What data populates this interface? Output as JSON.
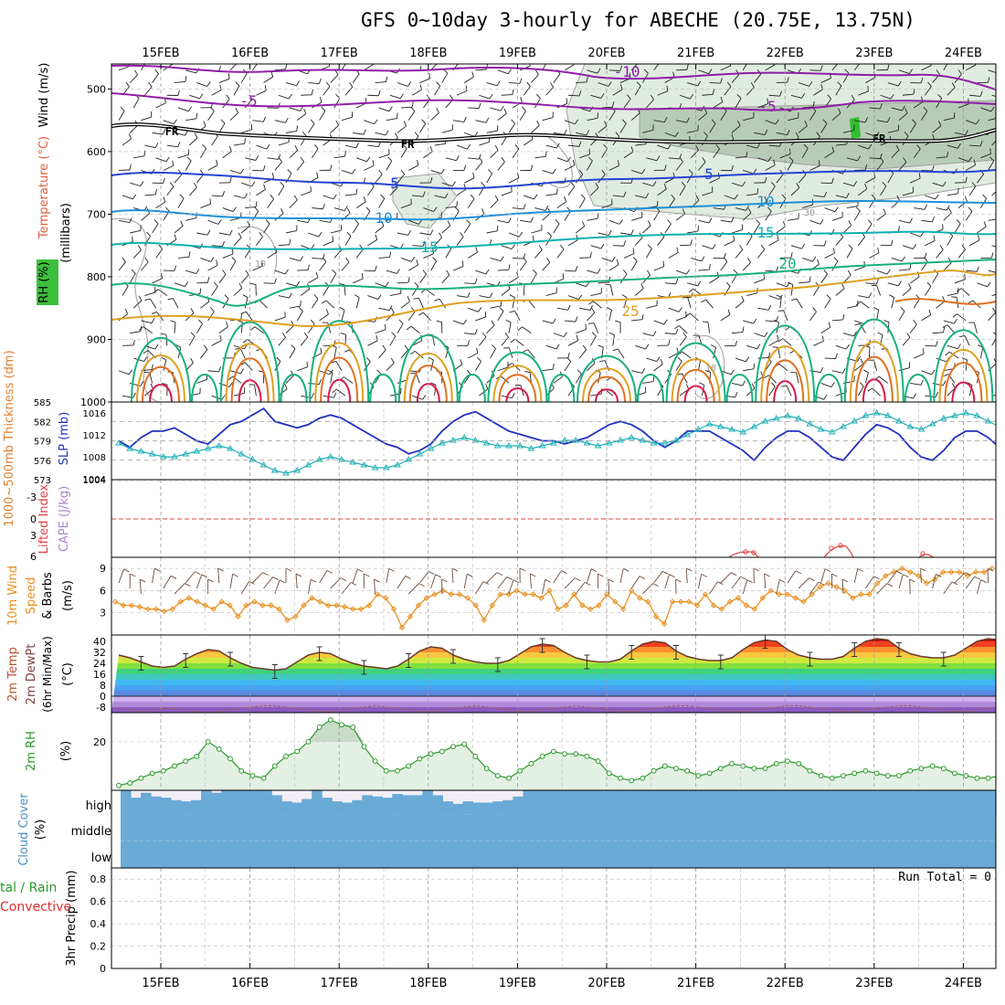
{
  "page": {
    "title": "GFS 0~10day 3-hourly for ABECHE (20.75E, 13.75N)"
  },
  "time_axis": {
    "dates": [
      "15FEB",
      "16FEB",
      "17FEB",
      "18FEB",
      "19FEB",
      "20FEB",
      "21FEB",
      "22FEB",
      "23FEB",
      "24FEB"
    ]
  },
  "colors": {
    "temp_neg10": "#8e1ea8",
    "temp_neg5": "#8e1ea8",
    "freezing": "#000000",
    "temp_5": "#2244d0",
    "temp_10": "#1e90d8",
    "temp_15": "#10b0b0",
    "temp_20": "#18b080",
    "temp_25": "#e0a020",
    "temp_30": "#e07020",
    "temp_35": "#d81848",
    "rh_fill": "#c8dcc8",
    "thickness": "#2030c0",
    "slp": "#20b0b8",
    "wind10m": "#e89020",
    "rh2m": "#2a9a2a",
    "cloud": "#6aaad6",
    "grid": "#999999"
  },
  "panels": {
    "upper_air": {
      "label_wind": "Wind (m/s)",
      "label_temp": "Temperature (°C)",
      "label_rh": "RH (%)",
      "label_pressure": "(millibars)",
      "pressure_ticks": [
        "500",
        "600",
        "700",
        "800",
        "900",
        "1000"
      ],
      "contour_labels": [
        "-10",
        "-5",
        "-5",
        "FR",
        "FR",
        "FR",
        "5",
        "5",
        "10",
        "10",
        "15",
        "15",
        "20",
        "25",
        "10",
        "10",
        "30"
      ]
    },
    "thickness_slp": {
      "label_thickness": "1000~500mb Thickness (dm)",
      "label_slp": "SLP (mb)",
      "left_ticks": [
        "585",
        "582",
        "579",
        "576",
        "573"
      ],
      "right_ticks": [
        "1016",
        "1012",
        "1008",
        "1004"
      ]
    },
    "instability": {
      "label_li": "Lifted Index",
      "label_cape": "CAPE (J/kg)",
      "right_ticks": [
        "1004"
      ],
      "ticks": [
        "-3",
        "0",
        "3",
        "6"
      ]
    },
    "wind10m": {
      "label": "10m Wind Speed & Barbs",
      "unit": "(m/s)",
      "ticks": [
        "9",
        "6",
        "3"
      ]
    },
    "temp2m": {
      "label_temp": "2m Temp",
      "label_dewpt": "2m DewPt",
      "label_minmax": "(6hr Min/Max)",
      "unit": "(°C)",
      "ticks": [
        "40",
        "32",
        "24",
        "16",
        "8",
        "0",
        "-8"
      ]
    },
    "rh2m": {
      "label": "2m RH",
      "unit": "(%)",
      "ticks": [
        "20"
      ]
    },
    "cloud": {
      "label": "Cloud Cover",
      "unit": "(%)",
      "levels": [
        "high",
        "middle",
        "low"
      ]
    },
    "precip": {
      "label_total": "tal / Rain",
      "label_conv": "Convective",
      "label_axis": "3hr Precip (mm)",
      "ticks": [
        "0.8",
        "0.6",
        "0.4",
        "0.2",
        "0"
      ],
      "run_total": "Run Total = 0"
    }
  },
  "chart_data": [
    {
      "type": "line",
      "name": "thickness_slp",
      "x_start": "14FEB 12Z",
      "step_hours": 3,
      "series": [
        {
          "name": "Thickness",
          "values": [
            579.0,
            578.0,
            579.5,
            580.5,
            580.5,
            581.0,
            580.0,
            579.0,
            578.5,
            580.0,
            581.5,
            582.0,
            583.0,
            584.0,
            582.0,
            581.5,
            581.0,
            581.5,
            582.5,
            583.0,
            582.5,
            581.5,
            580.5,
            579.5,
            578.5,
            578.0,
            577.0,
            577.5,
            578.5,
            580.5,
            582.0,
            583.0,
            583.5,
            582.5,
            581.5,
            580.5,
            580.0,
            579.5,
            579.0,
            579.0,
            578.5,
            579.0,
            579.5,
            580.5,
            581.5,
            582.0,
            581.5,
            580.5,
            579.0,
            578.0,
            579.0,
            580.5,
            580.5,
            580.5,
            579.5,
            578.5,
            577.5,
            576.0,
            578.0,
            579.5,
            580.5,
            580.5,
            579.5,
            578.0,
            576.5,
            576.0,
            578.0,
            580.0,
            581.5,
            581.0,
            580.0,
            578.0,
            576.5,
            576.0,
            577.5,
            579.5,
            580.5,
            580.5,
            579.5,
            578.0,
            575.5,
            576.0,
            578.0,
            579.5,
            579.5,
            579.0
          ]
        },
        {
          "name": "SLP",
          "values": [
            1010.5,
            1009.5,
            1009.0,
            1008.5,
            1008.0,
            1008.0,
            1008.5,
            1009.0,
            1009.5,
            1010.0,
            1009.5,
            1008.5,
            1007.5,
            1006.5,
            1005.5,
            1005.0,
            1005.5,
            1006.5,
            1007.5,
            1008.0,
            1007.5,
            1007.0,
            1006.5,
            1006.0,
            1006.0,
            1006.5,
            1007.5,
            1008.5,
            1009.5,
            1010.5,
            1011.0,
            1011.5,
            1011.0,
            1010.5,
            1010.0,
            1010.0,
            1010.0,
            1009.5,
            1010.0,
            1010.5,
            1011.0,
            1011.0,
            1010.5,
            1010.0,
            1010.5,
            1011.0,
            1011.5,
            1011.0,
            1010.5,
            1010.5,
            1011.0,
            1012.0,
            1013.0,
            1014.0,
            1013.5,
            1013.0,
            1012.5,
            1013.5,
            1014.5,
            1015.0,
            1015.5,
            1015.0,
            1014.0,
            1013.0,
            1012.5,
            1013.5,
            1014.5,
            1015.5,
            1016.0,
            1015.5,
            1014.5,
            1013.5,
            1013.0,
            1014.0,
            1015.0,
            1015.5,
            1016.0,
            1015.5,
            1014.5,
            1013.5,
            1013.0,
            1013.5,
            1014.0,
            1013.5,
            1013.0,
            1013.5
          ]
        }
      ]
    },
    {
      "type": "line",
      "name": "wind10m_speed",
      "x_start": "14FEB 12Z",
      "step_hours": 3,
      "series": [
        {
          "name": "10m Wind Speed",
          "values": [
            4.5,
            4.0,
            4.0,
            3.8,
            3.5,
            3.5,
            3.2,
            3.5,
            4.5,
            5.0,
            4.5,
            4.0,
            3.5,
            4.5,
            4.0,
            2.5,
            4.0,
            4.5,
            4.0,
            4.0,
            3.5,
            2.0,
            2.5,
            4.0,
            5.0,
            4.5,
            4.0,
            4.0,
            3.8,
            3.5,
            3.5,
            4.0,
            5.5,
            5.0,
            3.5,
            1.0,
            2.5,
            4.0,
            5.0,
            5.5,
            6.0,
            5.5,
            5.5,
            5.0,
            4.0,
            2.0,
            4.0,
            5.5,
            5.5,
            6.0,
            5.5,
            5.5,
            5.0,
            6.0,
            3.5,
            4.0,
            5.5,
            4.0,
            3.5,
            4.0,
            5.5,
            4.5,
            3.5,
            6.0,
            5.0,
            4.5,
            2.5,
            1.5,
            4.5,
            4.5,
            4.5,
            4.0,
            5.5,
            4.0,
            3.5,
            4.5,
            5.0,
            4.0,
            3.5,
            5.0,
            6.0,
            5.5,
            5.5,
            5.0,
            4.5,
            5.5,
            6.5,
            7.0,
            6.5,
            6.0,
            5.0,
            5.5,
            5.5,
            7.0,
            8.0,
            8.5,
            9.0,
            8.5,
            8.0,
            7.0,
            7.5,
            8.5,
            8.5,
            8.5,
            8.0,
            8.5,
            8.5,
            9.0
          ]
        }
      ]
    },
    {
      "type": "area",
      "name": "temp2m",
      "x_start": "14FEB 12Z",
      "step_hours": 3,
      "series": [
        {
          "name": "2m Temp",
          "values": [
            30,
            28,
            25,
            22,
            21,
            22,
            27,
            31,
            34,
            33,
            28,
            24,
            21,
            20,
            19,
            20,
            25,
            30,
            32,
            31,
            27,
            24,
            22,
            21,
            20,
            22,
            27,
            33,
            36,
            35,
            30,
            27,
            25,
            24,
            24,
            26,
            31,
            36,
            38,
            37,
            32,
            28,
            26,
            25,
            25,
            27,
            33,
            38,
            40,
            39,
            33,
            29,
            27,
            26,
            26,
            28,
            34,
            39,
            41,
            40,
            34,
            30,
            28,
            27,
            27,
            29,
            35,
            40,
            42,
            41,
            35,
            31,
            29,
            28,
            28,
            30,
            35,
            40,
            42,
            41,
            36,
            32,
            30,
            29,
            29,
            28,
            28
          ]
        },
        {
          "name": "2m DewPt",
          "values": [
            -9,
            -10,
            -11,
            -10,
            -9,
            -9,
            -10,
            -11,
            -12,
            -11,
            -10,
            -9,
            -8,
            -7,
            -7,
            -8,
            -9,
            -10,
            -11,
            -11,
            -10,
            -9,
            -8,
            -7,
            -8,
            -9,
            -10,
            -11,
            -11,
            -10,
            -9,
            -8,
            -7,
            -8,
            -9,
            -10,
            -11,
            -11,
            -10,
            -9,
            -8,
            -7,
            -8,
            -9,
            -10,
            -11,
            -11,
            -10,
            -9,
            -8,
            -7,
            -7,
            -8,
            -9,
            -10,
            -11,
            -11,
            -10,
            -9,
            -8,
            -7,
            -7,
            -8,
            -9,
            -10,
            -11,
            -11,
            -10,
            -9,
            -8,
            -7,
            -7,
            -8,
            -9,
            -10,
            -11,
            -11,
            -10,
            -9,
            -8,
            -7,
            -8,
            -9,
            -10,
            -11,
            -11
          ]
        }
      ]
    },
    {
      "type": "area",
      "name": "rh2m",
      "x_start": "14FEB 12Z",
      "step_hours": 3,
      "series": [
        {
          "name": "2m RH",
          "values": [
            2,
            3,
            5,
            7,
            8,
            10,
            12,
            14,
            20,
            17,
            13,
            8,
            6,
            5,
            10,
            14,
            16,
            20,
            26,
            29,
            27,
            26,
            18,
            12,
            8,
            8,
            10,
            13,
            15,
            16,
            18,
            19,
            14,
            9,
            6,
            5,
            8,
            11,
            14,
            16,
            15,
            15,
            14,
            12,
            7,
            5,
            4,
            5,
            8,
            10,
            9,
            8,
            6,
            7,
            9,
            11,
            10,
            9,
            9,
            11,
            12,
            11,
            8,
            6,
            5,
            6,
            7,
            8,
            7,
            6,
            6,
            8,
            9,
            10,
            9,
            7,
            6,
            5,
            5,
            6,
            7,
            8,
            7,
            6,
            5,
            5
          ]
        }
      ]
    },
    {
      "type": "bar",
      "name": "cloud_high",
      "x_start": "14FEB 12Z",
      "step_hours": 3,
      "series": [
        {
          "name": "High cloud",
          "values": [
            100,
            70,
            90,
            75,
            70,
            60,
            55,
            60,
            100,
            90,
            100,
            100,
            100,
            100,
            100,
            80,
            55,
            50,
            65,
            100,
            70,
            55,
            50,
            60,
            80,
            75,
            70,
            85,
            80,
            80,
            100,
            80,
            55,
            45,
            55,
            50,
            50,
            55,
            60,
            75,
            100,
            100,
            100,
            100,
            100,
            100,
            100,
            100,
            100,
            100,
            100,
            100,
            100,
            100,
            100,
            100,
            100,
            100,
            100,
            100,
            100,
            100,
            100,
            100,
            100,
            100,
            100,
            100,
            100,
            100,
            100,
            100,
            100,
            100,
            100,
            100,
            100,
            100,
            100,
            100,
            100,
            100,
            100,
            100,
            100,
            100,
            100
          ]
        }
      ]
    },
    {
      "type": "bar",
      "name": "precip",
      "series": [
        {
          "name": "3hr Precip",
          "values": [
            0,
            0,
            0,
            0,
            0,
            0,
            0,
            0,
            0,
            0
          ]
        }
      ],
      "ylim": [
        0,
        0.9
      ]
    }
  ]
}
